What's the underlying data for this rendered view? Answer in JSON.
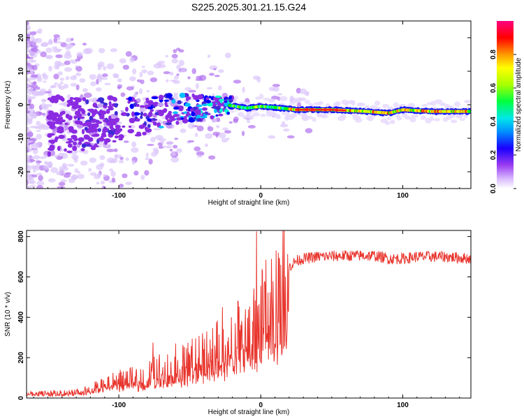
{
  "title": "S225.2025.301.21.15.G24",
  "colors": {
    "snr_line": "#e8342c",
    "axis": "#000000"
  },
  "chart_data": [
    {
      "type": "heatmap",
      "title": "S225.2025.301.21.15.G24",
      "xlabel": "Height of straight line (km)",
      "ylabel": "Frequency (Hz)",
      "xlim": [
        -165,
        148
      ],
      "ylim": [
        -25,
        25
      ],
      "xticks": [
        -100,
        0,
        100
      ],
      "yticks": [
        20,
        10,
        0,
        -10,
        -20
      ],
      "colorbar": {
        "label": "Normalized spectral amplitude",
        "range": [
          0,
          1
        ],
        "ticks": [
          0.0,
          0.2,
          0.4,
          0.6,
          0.8
        ],
        "colormap": [
          "#ffffff",
          "#c5a0f5",
          "#8a2be2",
          "#3f2bd6",
          "#0000ff",
          "#00bfff",
          "#00ffcc",
          "#00ff00",
          "#c8ff00",
          "#ffff00",
          "#ff8800",
          "#ff0000",
          "#ff0066"
        ]
      },
      "ridge": {
        "description": "frequency of spectral peak vs height",
        "x": [
          -165,
          -140,
          -120,
          -100,
          -80,
          -60,
          -40,
          -25,
          -10,
          0,
          10,
          25,
          50,
          75,
          90,
          100,
          120,
          148
        ],
        "y": [
          -6,
          -6,
          -6,
          -4,
          -3,
          -1,
          -1,
          0,
          -1,
          -0.5,
          -0.8,
          -1.5,
          -1.5,
          -2,
          -2.5,
          -1.5,
          -2,
          -2
        ]
      }
    },
    {
      "type": "line",
      "xlabel": "Height of straight line (km)",
      "ylabel": "SNR (10 * v/v)",
      "xlim": [
        -165,
        148
      ],
      "ylim": [
        0,
        830
      ],
      "xticks": [
        -100,
        0,
        100
      ],
      "yticks": [
        0,
        200,
        400,
        600,
        800
      ],
      "series": [
        {
          "name": "SNR",
          "x": [
            -165,
            -150,
            -130,
            -120,
            -110,
            -100,
            -90,
            -80,
            -70,
            -60,
            -50,
            -40,
            -30,
            -20,
            -15,
            -10,
            -5,
            0,
            5,
            10,
            15,
            20,
            25,
            30,
            40,
            60,
            80,
            90,
            100,
            110,
            130,
            148
          ],
          "y": [
            25,
            25,
            30,
            45,
            70,
            90,
            100,
            120,
            150,
            150,
            190,
            230,
            250,
            280,
            330,
            330,
            350,
            420,
            460,
            520,
            600,
            650,
            680,
            690,
            700,
            705,
            705,
            690,
            690,
            700,
            700,
            690
          ],
          "spikes": [
            {
              "x": -3,
              "y": 825
            },
            {
              "x": -38,
              "y": 330
            },
            {
              "x": -27,
              "y": 450
            },
            {
              "x": -76,
              "y": 275
            },
            {
              "x": -60,
              "y": 270
            }
          ]
        }
      ]
    }
  ]
}
